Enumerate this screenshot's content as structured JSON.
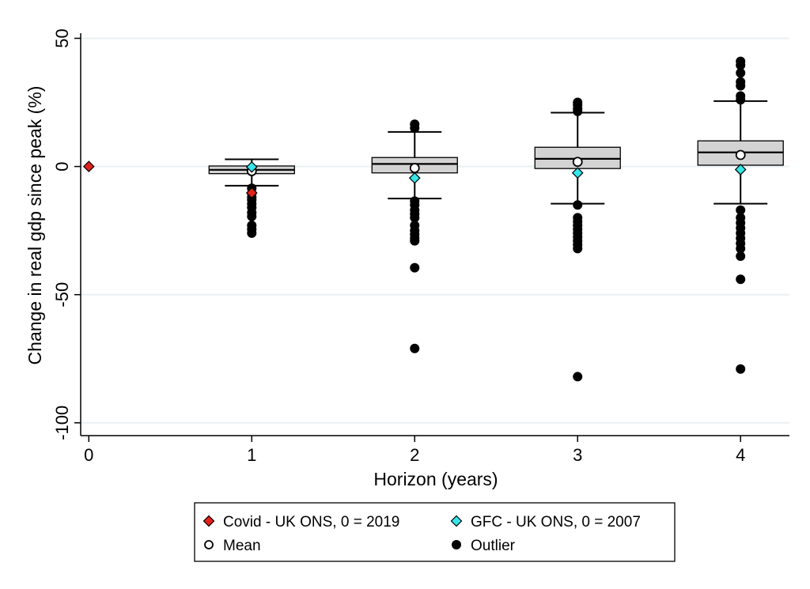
{
  "chart_data": {
    "type": "box",
    "xlabel": "Horizon (years)",
    "ylabel": "Change in real gdp since peak (%)",
    "xlim": [
      -0.05,
      4.3
    ],
    "ylim": [
      -105,
      52
    ],
    "x_ticks": [
      0,
      1,
      2,
      3,
      4
    ],
    "x_tick_labels": [
      "0",
      "1",
      "2",
      "3",
      "4"
    ],
    "y_ticks": [
      50,
      0,
      -50,
      -100
    ],
    "y_tick_labels": [
      "50",
      "0",
      "-50",
      "-100"
    ],
    "grid": true,
    "boxes": [
      {
        "x": 1,
        "q1": -2.8,
        "median": -1.3,
        "q3": 0.2,
        "whisker_low": -7.5,
        "whisker_high": 2.8,
        "mean": -1.8,
        "outliers": [
          -8.5,
          -10.5,
          -12,
          -13,
          -14.5,
          -16,
          -18,
          -19.5,
          -23,
          -24.5,
          -26
        ]
      },
      {
        "x": 2,
        "q1": -2.5,
        "median": 1.0,
        "q3": 3.5,
        "whisker_low": -12.5,
        "whisker_high": 13.5,
        "mean": -0.6,
        "outliers": [
          15,
          16.5,
          -13.5,
          -15,
          -17,
          -18.5,
          -20,
          -23,
          -25,
          -26.5,
          -28,
          -29,
          -39.5,
          -71
        ]
      },
      {
        "x": 3,
        "q1": -0.8,
        "median": 3.0,
        "q3": 7.5,
        "whisker_low": -14.5,
        "whisker_high": 21,
        "mean": 1.8,
        "outliers": [
          21.5,
          22.5,
          24,
          25,
          -15,
          -20,
          -21.5,
          -23,
          -24.5,
          -26,
          -27.5,
          -29,
          -30.5,
          -32,
          -82
        ]
      },
      {
        "x": 4,
        "q1": 0.5,
        "median": 5.5,
        "q3": 10,
        "whisker_low": -14.5,
        "whisker_high": 25.5,
        "mean": 4.5,
        "outliers": [
          26,
          27.5,
          31.5,
          33,
          36.5,
          39.5,
          41,
          -17,
          -20,
          -22,
          -24,
          -26,
          -28,
          -30,
          -32,
          -35,
          -44,
          -79
        ]
      }
    ],
    "covid_uk_ons": [
      {
        "x": 0,
        "y": 0
      },
      {
        "x": 1,
        "y": -10.3
      }
    ],
    "gfc_uk_ons": [
      {
        "x": 1,
        "y": -0.2
      },
      {
        "x": 2,
        "y": -4.5
      },
      {
        "x": 3,
        "y": -2.5
      },
      {
        "x": 4,
        "y": -1.2
      }
    ],
    "colors": {
      "covid": "#e3201b",
      "gfc": "#35e5ea",
      "box_fill": "#d3d3d3",
      "grid": "#eaf0f3"
    },
    "legend": {
      "placement": "bottom",
      "items": [
        {
          "label": "Covid - UK ONS, 0 = 2019",
          "marker": "diamond-red"
        },
        {
          "label": "GFC - UK ONS, 0 = 2007",
          "marker": "diamond-cyan"
        },
        {
          "label": "Mean",
          "marker": "hollow-circle"
        },
        {
          "label": "Outlier",
          "marker": "filled-circle"
        }
      ]
    }
  }
}
